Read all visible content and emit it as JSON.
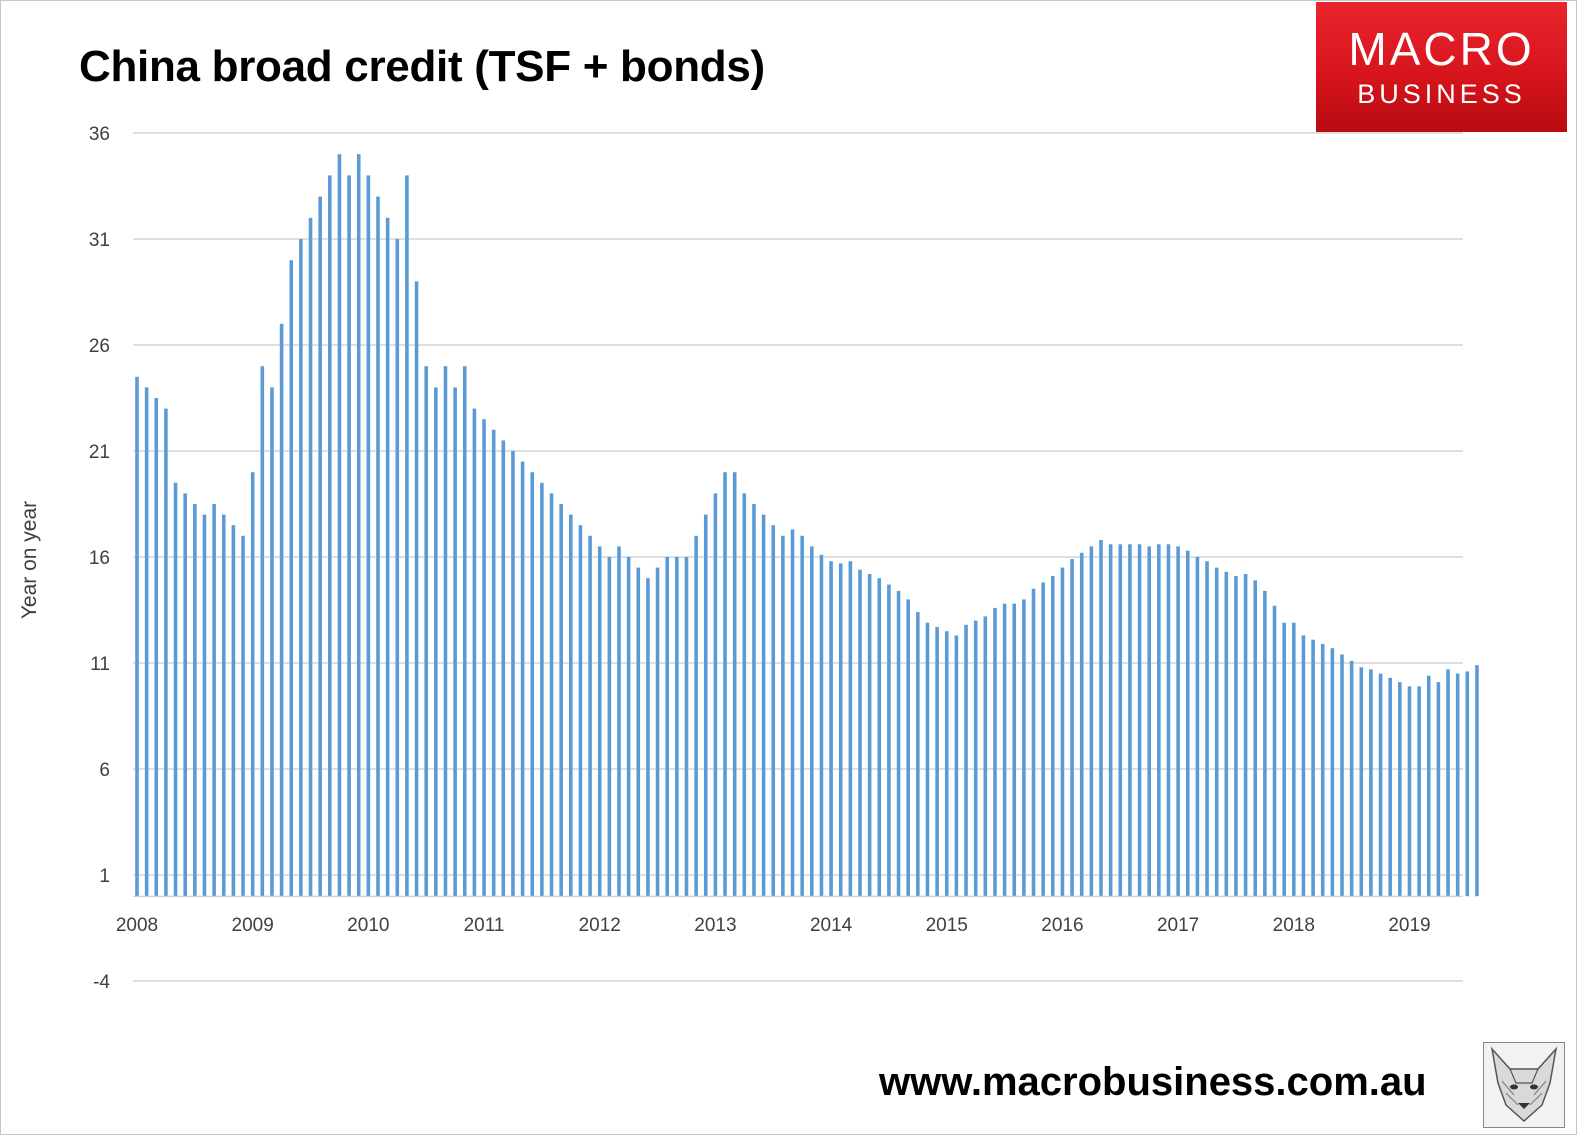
{
  "title": "China broad credit (TSF + bonds)",
  "logo": {
    "line1": "MACRO",
    "line2": "BUSINESS"
  },
  "url": "www.macrobusiness.com.au",
  "colors": {
    "bar": "#5b9bd5",
    "grid": "#bfbfbf",
    "axis_text": "#404040",
    "logo_bg": "#d8141c"
  },
  "chart_data": {
    "type": "bar",
    "ylabel": "Year on year",
    "ylim": [
      -4,
      36
    ],
    "yticks": [
      36,
      31,
      26,
      21,
      16,
      11,
      6,
      1,
      -4
    ],
    "xticks": [
      "2008",
      "2009",
      "2010",
      "2011",
      "2012",
      "2013",
      "2014",
      "2015",
      "2016",
      "2017",
      "2018",
      "2019"
    ],
    "grid": true,
    "legend": "none",
    "values": [
      24.5,
      24.0,
      23.5,
      23.0,
      19.5,
      19.0,
      18.5,
      18.0,
      18.5,
      18.0,
      17.5,
      17.0,
      20.0,
      25.0,
      24.0,
      27.0,
      30.0,
      31.0,
      32.0,
      33.0,
      34.0,
      35.0,
      34.0,
      35.0,
      34.0,
      33.0,
      32.0,
      31.0,
      34.0,
      29.0,
      25.0,
      24.0,
      25.0,
      24.0,
      25.0,
      23.0,
      22.5,
      22.0,
      21.5,
      21.0,
      20.5,
      20.0,
      19.5,
      19.0,
      18.5,
      18.0,
      17.5,
      17.0,
      16.5,
      16.0,
      16.5,
      16.0,
      15.5,
      15.0,
      15.5,
      16.0,
      16.0,
      16.0,
      17.0,
      18.0,
      19.0,
      20.0,
      20.0,
      19.0,
      18.5,
      18.0,
      17.5,
      17.0,
      17.3,
      17.0,
      16.5,
      16.1,
      15.8,
      15.7,
      15.8,
      15.4,
      15.2,
      15.0,
      14.7,
      14.4,
      14.0,
      13.4,
      12.9,
      12.7,
      12.5,
      12.3,
      12.8,
      13.0,
      13.2,
      13.6,
      13.8,
      13.8,
      14.0,
      14.5,
      14.8,
      15.1,
      15.5,
      15.9,
      16.2,
      16.5,
      16.8,
      16.6,
      16.6,
      16.6,
      16.6,
      16.5,
      16.6,
      16.6,
      16.5,
      16.3,
      16.0,
      15.8,
      15.5,
      15.3,
      15.1,
      15.2,
      14.9,
      14.4,
      13.7,
      12.9,
      12.9,
      12.3,
      12.1,
      11.9,
      11.7,
      11.4,
      11.1,
      10.8,
      10.7,
      10.5,
      10.3,
      10.1,
      9.9,
      9.9,
      10.4,
      10.1,
      10.7,
      10.5,
      10.6,
      10.9
    ]
  }
}
